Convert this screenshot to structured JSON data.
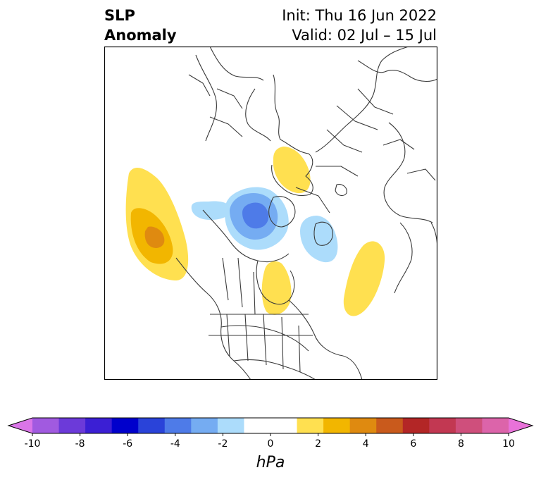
{
  "title": {
    "variable_line1": "SLP",
    "variable_line2": "Anomaly",
    "init": "Init: Thu 16 Jun 2022",
    "valid": "Valid: 02 Jul – 15 Jul"
  },
  "map": {
    "projection": "polar stereographic, North Pole",
    "features": [
      "coastlines",
      "country borders",
      "US state borders",
      "Canadian province borders"
    ],
    "anomalies": [
      {
        "name": "north-pacific-high",
        "region": "North Pacific",
        "peak_hpa": 4,
        "levels": [
          1,
          2,
          3
        ]
      },
      {
        "name": "arctic-low",
        "region": "Arctic Ocean / Beaufort Sea",
        "peak_hpa": -5,
        "levels": [
          -1,
          -2,
          -3
        ]
      },
      {
        "name": "siberian-low-arm",
        "region": "East Siberian Sea",
        "peak_hpa": -1,
        "levels": [
          -1
        ]
      },
      {
        "name": "barents-low",
        "region": "Barents / Kara Sea",
        "peak_hpa": -2,
        "levels": [
          -1
        ]
      },
      {
        "name": "scandinavia-high",
        "region": "Scandinavia",
        "peak_hpa": 1.5,
        "levels": [
          1
        ]
      },
      {
        "name": "hudson-bay-high",
        "region": "Hudson Bay / Central Canada",
        "peak_hpa": 1.5,
        "levels": [
          1
        ]
      },
      {
        "name": "central-asia-high",
        "region": "Central Asia",
        "peak_hpa": 1.5,
        "levels": [
          1
        ]
      }
    ]
  },
  "colorbar": {
    "unit": "hPa",
    "min": -10,
    "max": 10,
    "step": 1,
    "extend": "both",
    "ticks": [
      "-10",
      "-8",
      "-6",
      "-4",
      "-2",
      "0",
      "2",
      "4",
      "6",
      "8",
      "10"
    ],
    "colors": [
      "#da75e8",
      "#a15ae0",
      "#6c3ad9",
      "#3b1fd4",
      "#0000cc",
      "#2a43d9",
      "#4e7be8",
      "#75acf2",
      "#acdcfb",
      "#ffffff",
      "#ffffff",
      "#ffe050",
      "#f2b600",
      "#df8a10",
      "#c95a1c",
      "#b32626",
      "#c23852",
      "#cf4f7c",
      "#dc64aa",
      "#e872d9"
    ]
  }
}
